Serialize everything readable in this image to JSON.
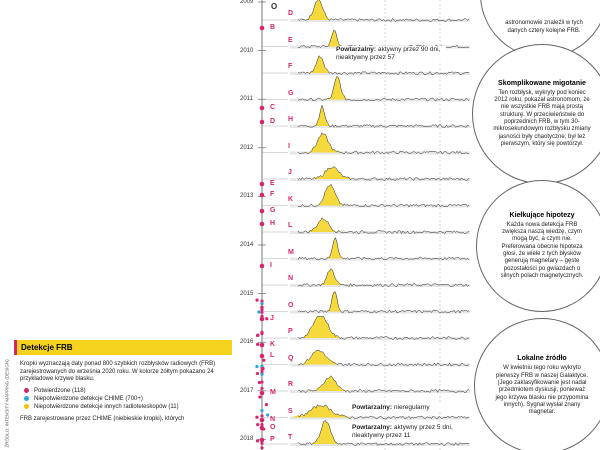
{
  "axis_label": "O",
  "years": [
    "2009",
    "2010",
    "2011",
    "2012",
    "2013",
    "2014",
    "2015",
    "2016",
    "2017",
    "2018"
  ],
  "timeline_letters": [
    "B",
    "C",
    "D",
    "E",
    "F",
    "G",
    "H",
    "I",
    "J",
    "K",
    "L",
    "M",
    "N",
    "O",
    "P"
  ],
  "panel_letters": [
    "D",
    "E",
    "F",
    "G",
    "H",
    "I",
    "J",
    "K",
    "L",
    "M",
    "N",
    "O",
    "P",
    "Q",
    "R",
    "S",
    "T"
  ],
  "annotations": [
    {
      "label": "Powtarzalny:",
      "text": "aktywny przez 90 dni, nieaktywny przez 57"
    },
    {
      "label": "Powtarzalny:",
      "text": "nieregularny"
    },
    {
      "label": "Powtarzalny:",
      "text": "aktywny przez 5 dni, nieaktywny przez 11"
    }
  ],
  "callouts": [
    {
      "body": "astronomowie znaleźli w tych danych cztery kolejne FRB."
    },
    {
      "title": "Skomplikowane migotanie",
      "body": "Ten rozbłysk, wykryty pod koniec 2012 roku, pokazał astronomom, że nie wszystkie FRB mają prostą strukturę. W przeciwieństwie do poprzednich FRB, w tym 30-mikrosekundowym rozbłysku zmiany jasności były chaotyczne; był też pierwszym, który się powtórzył."
    },
    {
      "title": "Kiełkujące hipotezy",
      "body": "Każda nowa detekcja FRB zwiększa naszą wiedzę, czym mogą być, a czym nie. Preferowana obecnie hipoteza głosi, że wiele z tych błysków generują magnetary – gęste pozostałości po gwiazdach o silnych polach magnetycznych."
    },
    {
      "title": "Lokalne źródło",
      "body": "W kwietniu tego roku wykryto pierwszy FRB w naszej Galaktyce. (Jego zaklasyfikowanie jest nadal przedmiotem dyskusji, ponieważ jego krzywa blasku nie przypomina innych). Sygnał wysłał znany magnetar."
    }
  ],
  "legend": {
    "title": "Detekcje FRB",
    "description": "Kropki wyznaczają daty ponad 800 szybkich rozbłysków radiowych (FRB) zarejestrowanych do września 2020 roku. W kolorze żółtym pokazano 24 przykładowe krzywe blasku.",
    "items": [
      {
        "label": "Potwierdzone (118)",
        "color": "#d6246e"
      },
      {
        "label": "Niepotwierdzone detekcje CHIME (700+)",
        "color": "#2aa6e0"
      },
      {
        "label": "Niepotwierdzone detekcje innych radioteleskopów (11)",
        "color": "#f2c200"
      }
    ],
    "footnote": "FRB zarejestrowane przez CHIME (niebieskie kropki), których"
  },
  "credit": "ŹRÓDŁO: INTENSITY MAPPING (DESIGN)"
}
